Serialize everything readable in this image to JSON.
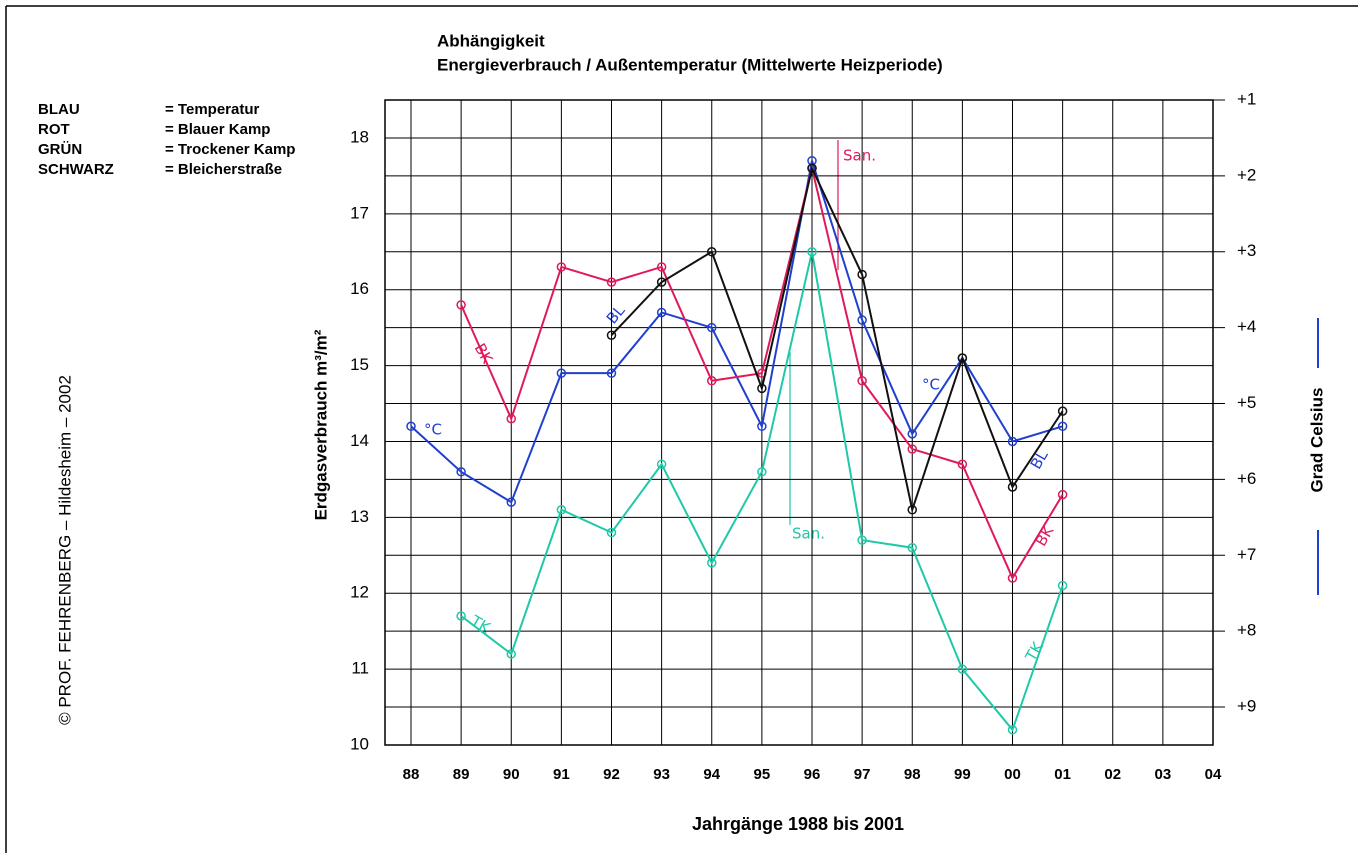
{
  "chart_data": {
    "type": "line",
    "title": "Abhängigkeit",
    "subtitle": "Energieverbrauch / Außentemperatur (Mittelwerte Heizperiode)",
    "xlabel": "Jahrgänge  1988 bis 2001",
    "ylabel": "Erdgasverbrauch  m³/m²",
    "y2label": "Grad Celsius",
    "credit": "© PROF. FEHRENBERG – Hildesheim – 2002",
    "categories": [
      "88",
      "89",
      "90",
      "91",
      "92",
      "93",
      "94",
      "95",
      "96",
      "97",
      "98",
      "99",
      "00",
      "01",
      "02",
      "03",
      "04"
    ],
    "ylim": [
      10,
      18.5
    ],
    "yticks": [
      10,
      11,
      12,
      13,
      14,
      15,
      16,
      17,
      18
    ],
    "y2lim": [
      9.5,
      1
    ],
    "y2ticks": [
      {
        "value": 1,
        "label": "+1"
      },
      {
        "value": 2,
        "label": "+2"
      },
      {
        "value": 3,
        "label": "+3"
      },
      {
        "value": 4,
        "label": "+4"
      },
      {
        "value": 5,
        "label": "+5"
      },
      {
        "value": 6,
        "label": "+6"
      },
      {
        "value": 7,
        "label": "+7"
      },
      {
        "value": 8,
        "label": "+8"
      },
      {
        "value": 9,
        "label": "+9"
      }
    ],
    "grid": true,
    "series": [
      {
        "key": "BLAU",
        "name": "= Temperatur",
        "color": "#1f3fd0",
        "axis": "y2",
        "values": [
          5.3,
          5.9,
          6.3,
          4.6,
          4.6,
          3.8,
          4.0,
          5.3,
          1.8,
          3.9,
          5.4,
          4.4,
          5.5,
          5.3,
          null,
          null,
          null
        ]
      },
      {
        "key": "ROT",
        "name": "= Blauer Kamp",
        "color": "#e0195a",
        "values": [
          null,
          15.8,
          14.3,
          16.3,
          16.1,
          16.3,
          14.8,
          14.9,
          17.6,
          14.8,
          13.9,
          13.7,
          12.2,
          13.3,
          null,
          null,
          null
        ]
      },
      {
        "key": "GRÜN",
        "name": "= Trockener Kamp",
        "color": "#1fc9a8",
        "values": [
          null,
          11.7,
          11.2,
          13.1,
          12.8,
          13.7,
          12.4,
          13.6,
          16.5,
          12.7,
          12.6,
          11.0,
          10.2,
          12.1,
          null,
          null,
          null
        ]
      },
      {
        "key": "SCHWARZ",
        "name": "= Bleicherstraße",
        "color": "#111111",
        "values": [
          null,
          null,
          null,
          null,
          15.4,
          16.1,
          16.5,
          14.7,
          17.6,
          16.2,
          13.1,
          15.1,
          13.4,
          14.4,
          null,
          null,
          null
        ]
      }
    ],
    "annotations": [
      "San.",
      "San.",
      "BK",
      "BK",
      "TK",
      "TK",
      "BL",
      "BL",
      "°C",
      "°C"
    ]
  }
}
